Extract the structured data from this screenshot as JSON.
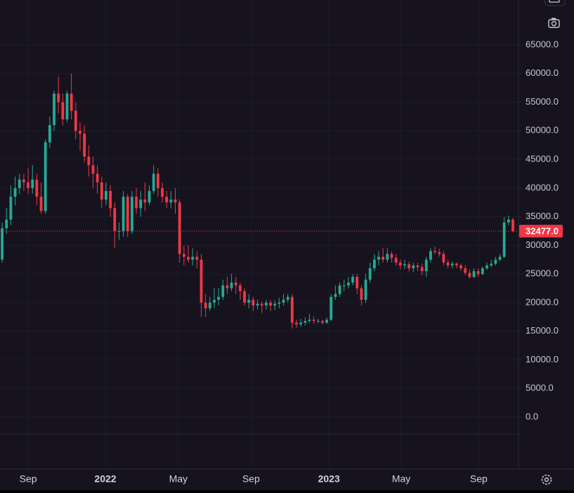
{
  "chart_data": {
    "type": "candlestick",
    "up_color": "#22ab94",
    "down_color": "#f23645",
    "grid": true,
    "xlim": [
      -0.5,
      119.3
    ],
    "xticks": [
      {
        "value": 6.0,
        "label": "Sep"
      },
      {
        "value": 23.85,
        "label": "2022"
      },
      {
        "value": 40.7,
        "label": "May"
      },
      {
        "value": 57.5,
        "label": "Sep"
      },
      {
        "value": 75.5,
        "label": "2023"
      },
      {
        "value": 92.2,
        "label": "May"
      },
      {
        "value": 110.1,
        "label": "Sep"
      }
    ],
    "ylim": [
      -2943,
      66715
    ],
    "yticks": [
      {
        "value": 65000,
        "label": "65000.0"
      },
      {
        "value": 60000,
        "label": "60000.0"
      },
      {
        "value": 55000,
        "label": "55000.0"
      },
      {
        "value": 50000,
        "label": "50000.0"
      },
      {
        "value": 45000,
        "label": "45000.0"
      },
      {
        "value": 40000,
        "label": "40000.0"
      },
      {
        "value": 35000,
        "label": "35000.0"
      },
      {
        "value": 30000,
        "label": "30000.0"
      },
      {
        "value": 25000,
        "label": "25000.0"
      },
      {
        "value": 20000,
        "label": "20000.0"
      },
      {
        "value": 15000,
        "label": "15000.0"
      },
      {
        "value": 10000,
        "label": "10000.0"
      },
      {
        "value": 5000,
        "label": "5000.0"
      },
      {
        "value": 0,
        "label": "0.0"
      }
    ],
    "last_price": {
      "value": 32477,
      "label": "32477.0"
    },
    "open": [
      27500,
      33000,
      34500,
      38500,
      40000,
      41500,
      41000,
      40000,
      41500,
      38500,
      36000,
      48000,
      51000,
      56500,
      55000,
      52000,
      56500,
      53500,
      50000,
      49500,
      45500,
      44000,
      42500,
      41000,
      38000,
      39500,
      36500,
      32500,
      32500,
      38500,
      32500,
      38500,
      36500,
      38000,
      37500,
      39500,
      42500,
      40000,
      38500,
      37500,
      38000,
      37500,
      28500,
      28000,
      27500,
      28000,
      27500,
      20000,
      19000,
      20000,
      20500,
      21000,
      23000,
      22500,
      23500,
      23000,
      22000,
      20000,
      20500,
      19500,
      19800,
      19500,
      20000,
      19500,
      19800,
      20000,
      20500,
      21000,
      16500,
      16200,
      16500,
      16800,
      17000,
      16800,
      16800,
      16500,
      17000,
      21000,
      21500,
      23000,
      23000,
      23500,
      24500,
      22500,
      20500,
      24000,
      26000,
      27500,
      28000,
      27500,
      28500,
      27800,
      27000,
      26500,
      26700,
      26000,
      26500,
      26200,
      25500,
      27500,
      29000,
      28800,
      28500,
      27000,
      26500,
      26800,
      26500,
      26000,
      25200,
      24500,
      25500,
      25000,
      26000,
      26500,
      26800,
      27500,
      28000,
      34000,
      34500
    ],
    "high": [
      34000,
      36500,
      40500,
      42000,
      42500,
      42500,
      43500,
      44000,
      42500,
      41000,
      48500,
      52500,
      57000,
      59500,
      56500,
      57000,
      60000,
      55000,
      51500,
      51000,
      47500,
      45500,
      44000,
      42000,
      41000,
      40500,
      37500,
      34000,
      39500,
      39000,
      39500,
      40000,
      39500,
      41000,
      40500,
      44000,
      43500,
      41000,
      39500,
      39500,
      40000,
      38000,
      30000,
      30000,
      29500,
      29000,
      28500,
      21500,
      21000,
      22500,
      22500,
      24000,
      24500,
      25000,
      24500,
      23500,
      22500,
      21500,
      21000,
      20500,
      20200,
      20500,
      20500,
      20400,
      20800,
      21500,
      21500,
      21500,
      17000,
      17200,
      17400,
      18000,
      17600,
      17200,
      17000,
      17400,
      21500,
      23000,
      23500,
      24000,
      24500,
      25000,
      25000,
      23000,
      25000,
      27000,
      28500,
      29000,
      29500,
      29500,
      29000,
      28500,
      27500,
      27500,
      27200,
      27000,
      27000,
      26800,
      28000,
      29500,
      29800,
      29400,
      29000,
      27500,
      27200,
      27000,
      26800,
      26500,
      25800,
      26000,
      26000,
      26300,
      27000,
      27500,
      28000,
      28500,
      35000,
      35200,
      34800
    ],
    "low": [
      27000,
      32000,
      33500,
      37000,
      39000,
      39500,
      39000,
      39000,
      37000,
      35500,
      35500,
      47000,
      50000,
      53000,
      51000,
      51500,
      52000,
      48500,
      46500,
      44500,
      42000,
      40000,
      39000,
      36500,
      37000,
      35000,
      29500,
      31000,
      31500,
      31500,
      32000,
      35500,
      35000,
      36000,
      37000,
      39000,
      38500,
      37500,
      36500,
      36500,
      35500,
      27000,
      26500,
      27000,
      26500,
      26000,
      17500,
      17500,
      18500,
      19000,
      19500,
      20500,
      21500,
      22000,
      21500,
      20500,
      19500,
      19000,
      18500,
      18800,
      18200,
      18800,
      18500,
      18700,
      19000,
      19500,
      20000,
      15500,
      15600,
      15800,
      16000,
      16500,
      16300,
      16400,
      16200,
      16300,
      16800,
      20500,
      21000,
      22000,
      22500,
      23000,
      21500,
      19500,
      20000,
      23500,
      25500,
      26500,
      27000,
      27000,
      27000,
      26500,
      25800,
      25900,
      25500,
      25300,
      25500,
      24800,
      24500,
      27000,
      28500,
      28000,
      26500,
      26000,
      26000,
      26000,
      25500,
      24800,
      24200,
      24300,
      24500,
      24800,
      25700,
      26200,
      26500,
      27200,
      27800,
      33500,
      32300
    ],
    "close": [
      33000,
      34500,
      38500,
      40000,
      41500,
      41000,
      40000,
      41500,
      38500,
      36000,
      48000,
      51000,
      56500,
      55000,
      52000,
      56500,
      53500,
      50000,
      49500,
      45500,
      44000,
      42500,
      41000,
      38000,
      39500,
      36500,
      32500,
      32500,
      38500,
      32500,
      38500,
      36500,
      38000,
      37500,
      39500,
      42500,
      40000,
      38500,
      37500,
      38000,
      37500,
      28500,
      28000,
      27500,
      28000,
      27500,
      20000,
      19000,
      20000,
      20500,
      21000,
      23000,
      22500,
      23500,
      23000,
      22000,
      20000,
      20500,
      19500,
      19800,
      19500,
      20000,
      19500,
      19800,
      20000,
      20500,
      21000,
      16500,
      16200,
      16500,
      16800,
      17000,
      16800,
      16800,
      16500,
      17000,
      21000,
      21500,
      23000,
      23000,
      23500,
      24500,
      22500,
      20500,
      24000,
      26000,
      27500,
      28000,
      27500,
      28500,
      27800,
      27000,
      26500,
      26700,
      26000,
      26500,
      26200,
      25500,
      27500,
      29000,
      28800,
      28500,
      27000,
      26500,
      26800,
      26500,
      26000,
      25200,
      24500,
      25500,
      25000,
      26000,
      26500,
      26800,
      27500,
      28000,
      34000,
      34500,
      32477
    ]
  }
}
